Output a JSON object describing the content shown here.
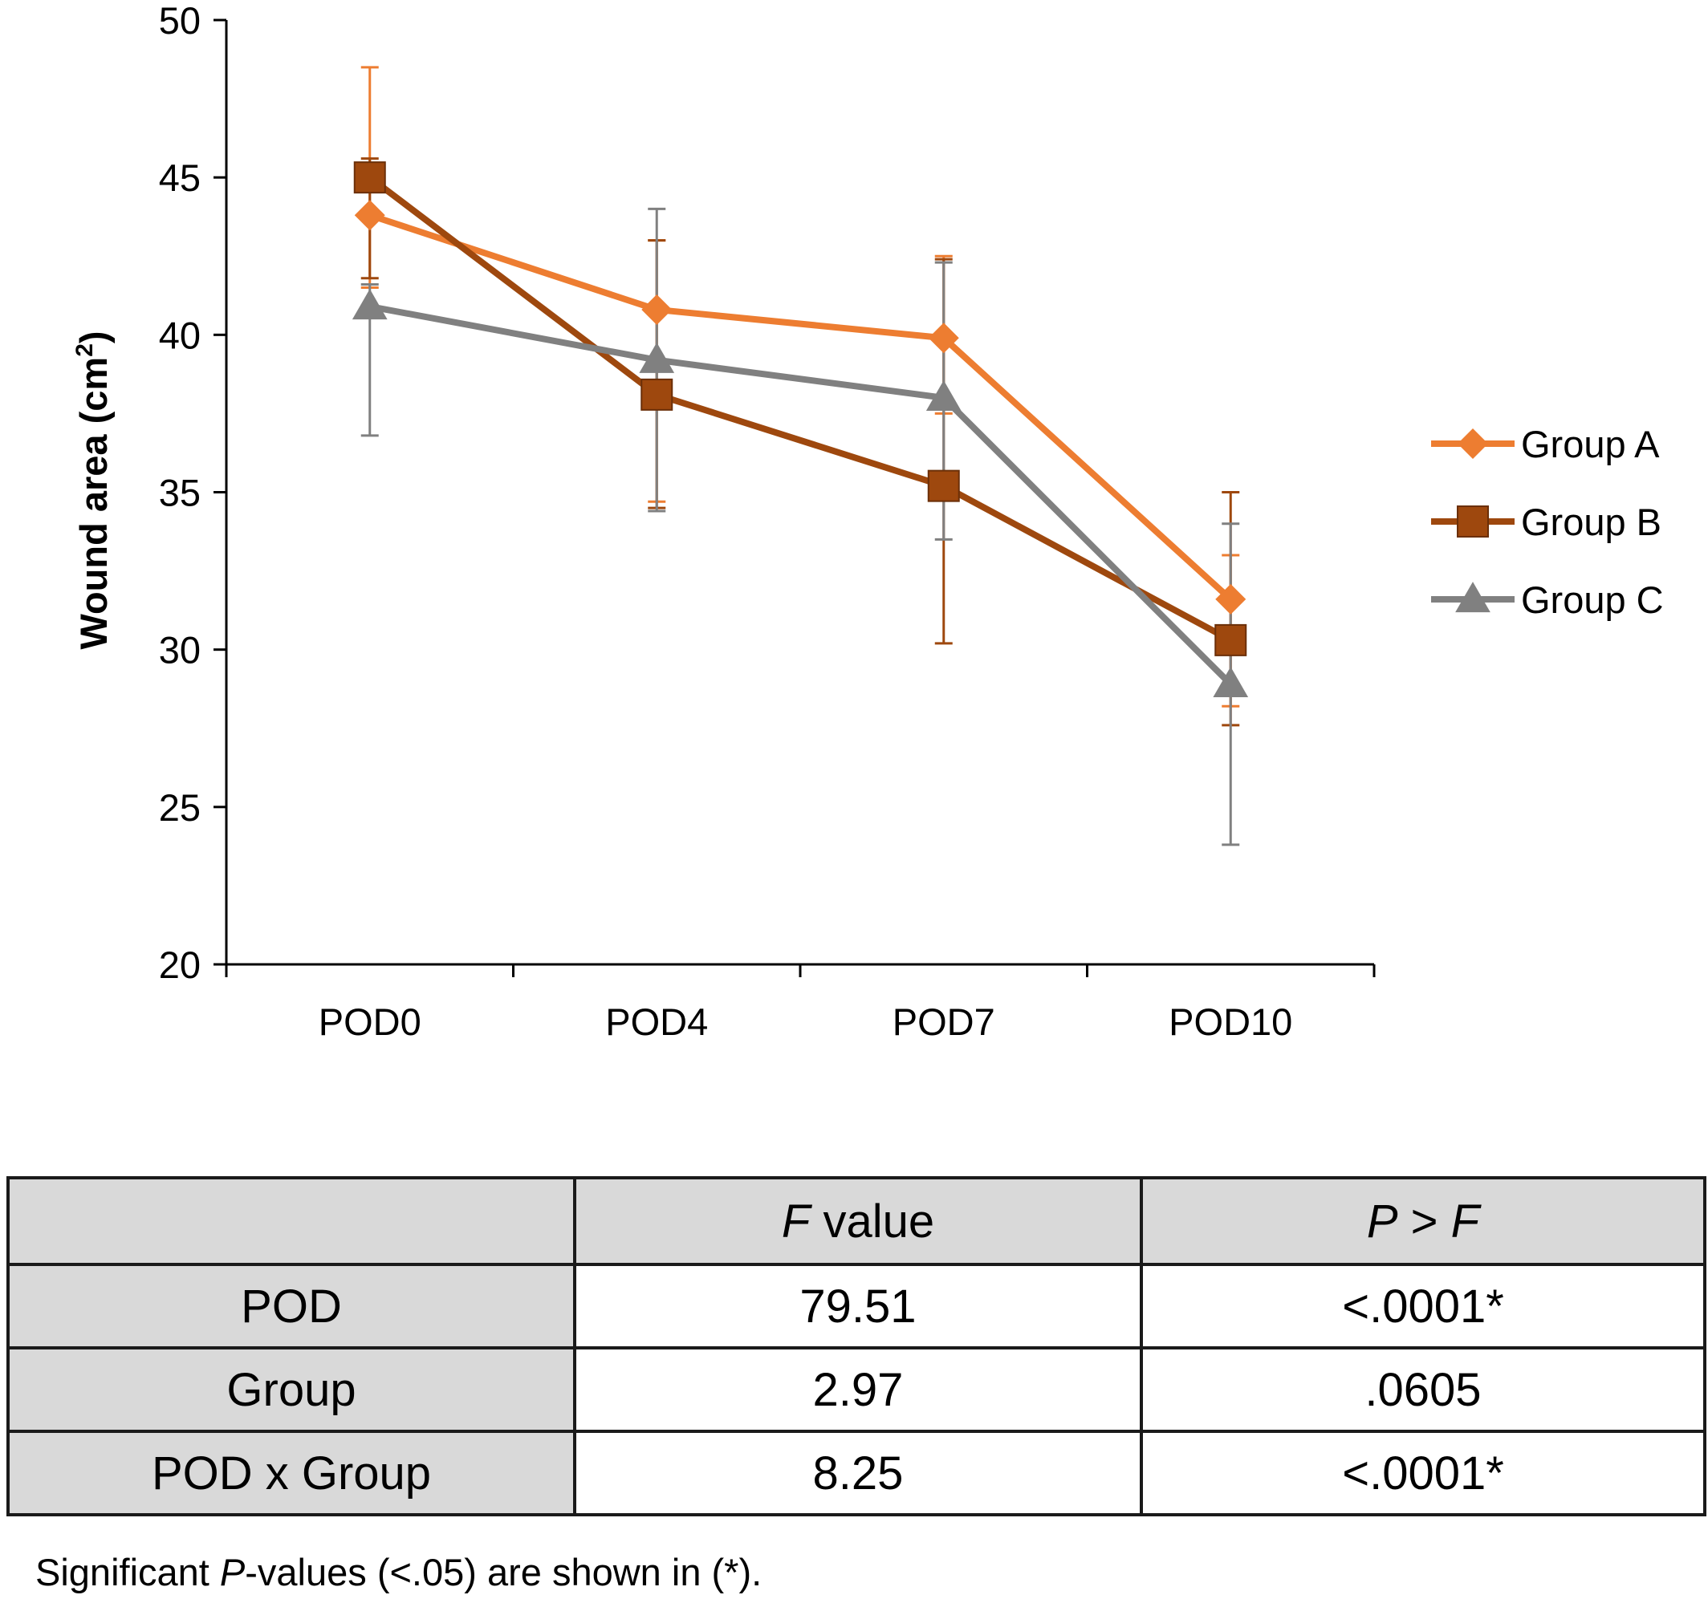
{
  "chart_data": {
    "type": "line",
    "ylabel_text": "Wound area (cm",
    "ylabel_sup": "2",
    "ylabel_close": ")",
    "categories": [
      "POD0",
      "POD4",
      "POD7",
      "POD10"
    ],
    "ylim": [
      20,
      50
    ],
    "yticks": [
      "20",
      "25",
      "30",
      "35",
      "40",
      "45",
      "50"
    ],
    "grid": false,
    "legend_position": "right",
    "series": [
      {
        "name": "Group A",
        "color": "#ED7D31",
        "marker": "diamond",
        "values": [
          43.8,
          40.8,
          39.9,
          31.6
        ],
        "err_low": [
          41.5,
          34.7,
          37.5,
          28.2
        ],
        "err_high": [
          48.5,
          43.0,
          42.5,
          33.0
        ]
      },
      {
        "name": "Group B",
        "color": "#9E480E",
        "marker": "square",
        "values": [
          45.0,
          38.1,
          35.2,
          30.3
        ],
        "err_low": [
          41.8,
          34.5,
          30.2,
          27.6
        ],
        "err_high": [
          45.6,
          43.0,
          42.4,
          35.0
        ]
      },
      {
        "name": "Group C",
        "color": "#808080",
        "marker": "triangle",
        "values": [
          40.9,
          39.2,
          38.0,
          28.9
        ],
        "err_low": [
          36.8,
          34.4,
          33.5,
          23.8
        ],
        "err_high": [
          41.6,
          44.0,
          42.3,
          34.0
        ]
      }
    ]
  },
  "table": {
    "header": {
      "blank": "",
      "fvalue_italic": "F",
      "fvalue_rest": " value",
      "p_italic_1": "P",
      "p_mid": " > ",
      "p_italic_2": "F"
    },
    "rows": [
      {
        "label": "POD",
        "f": "79.51",
        "p": "<.0001*"
      },
      {
        "label": "Group",
        "f": "2.97",
        "p": ".0605"
      },
      {
        "label": "POD x Group",
        "f": "8.25",
        "p": "<.0001*"
      }
    ]
  },
  "footnote": {
    "pre": "Significant ",
    "italic": "P",
    "post": "-values (<.05) are shown in (*)."
  }
}
